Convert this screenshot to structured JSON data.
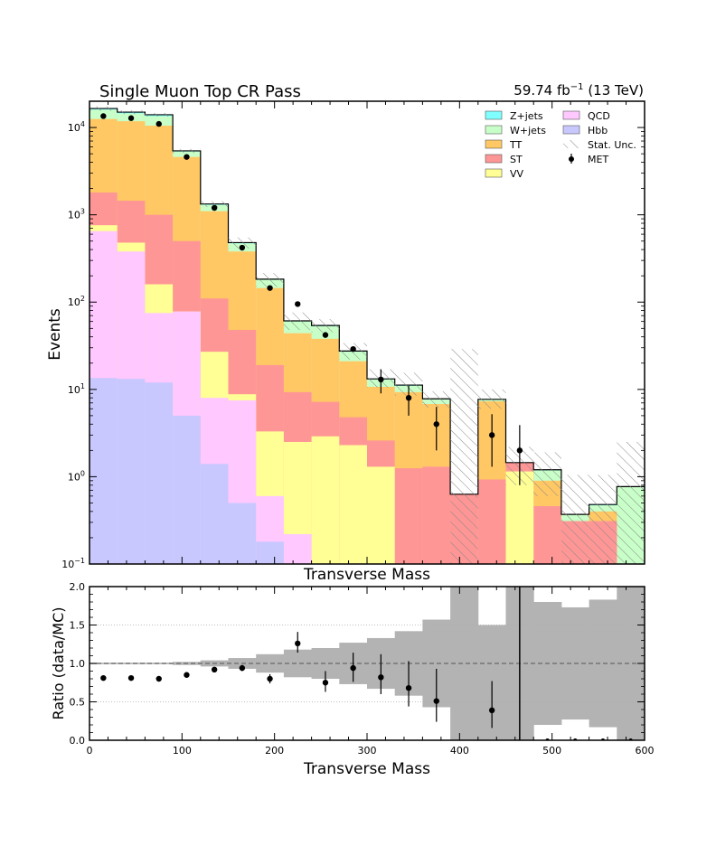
{
  "chart_data": [
    {
      "type": "stacked-histogram",
      "title": "Single Muon Top CR Pass",
      "lumi_label": "59.74 fb$^{-1}$ (13 TeV)",
      "lumi_value": "59.74 fb",
      "lumi_exp": "−1",
      "lumi_energy": "(13 TeV)",
      "xlabel": "Transverse Mass",
      "ylabel": "Events",
      "yscale": "log",
      "xlim": [
        0,
        600
      ],
      "ylim": [
        0.1,
        20000
      ],
      "bin_edges": [
        0,
        30,
        60,
        90,
        120,
        150,
        180,
        210,
        240,
        270,
        300,
        330,
        360,
        390,
        420,
        450,
        480,
        510,
        540,
        570,
        600
      ],
      "stack_order": [
        "Hbb",
        "QCD",
        "VV",
        "ST",
        "TT",
        "W+jets",
        "Z+jets"
      ],
      "stack_cumulative": {
        "Hbb": [
          13.5,
          13.2,
          12.0,
          5.0,
          1.4,
          0.5,
          0.18,
          0.1,
          0.1,
          0.1,
          0.1,
          0.1,
          0.1,
          0.1,
          0.1,
          0.1,
          0.1,
          0.1,
          0.1,
          0.1
        ],
        "QCD": [
          650,
          380,
          75,
          78,
          8.0,
          7.5,
          0.6,
          0.22,
          0.1,
          0.1,
          0.1,
          0.1,
          0.1,
          0.1,
          0.1,
          0.1,
          0.1,
          0.1,
          0.1,
          0.1
        ],
        "VV": [
          760,
          480,
          160,
          78,
          27,
          8.8,
          3.3,
          2.5,
          2.9,
          2.3,
          1.3,
          0.1,
          0.1,
          0.1,
          0.1,
          1.15,
          0.1,
          0.1,
          0.1,
          0.1
        ],
        "ST": [
          1800,
          1450,
          1000,
          500,
          110,
          48,
          19,
          9.3,
          7.2,
          4.8,
          2.6,
          1.25,
          1.3,
          0.63,
          0.93,
          1.45,
          0.46,
          0.31,
          0.31,
          0.1
        ],
        "TT": [
          12500,
          11800,
          10500,
          4600,
          1100,
          380,
          145,
          44,
          38,
          21,
          10.7,
          9.3,
          6.8,
          0.63,
          7.3,
          1.45,
          0.9,
          0.31,
          0.4,
          0.1
        ],
        "W+jets": [
          16000,
          14500,
          13500,
          5300,
          1300,
          470,
          180,
          60,
          53,
          27,
          13,
          11,
          7.7,
          0.63,
          7.6,
          1.45,
          1.18,
          0.37,
          0.47,
          0.76
        ],
        "Z+jets": [
          16500,
          15000,
          14000,
          5400,
          1330,
          480,
          183,
          61,
          54,
          27.5,
          13.2,
          11.2,
          7.8,
          0.63,
          7.7,
          1.45,
          1.2,
          0.37,
          0.48,
          0.77
        ]
      },
      "stat_unc_band": {
        "low": [
          15500,
          14200,
          13300,
          5100,
          1230,
          410,
          150,
          48,
          45,
          22,
          10.5,
          8.5,
          6.2,
          0.1,
          6.0,
          0.8,
          0.6,
          0.1,
          0.1,
          0.1
        ],
        "high": [
          17500,
          15800,
          14700,
          5700,
          1430,
          550,
          215,
          76,
          64,
          34,
          17,
          15.5,
          9.5,
          29,
          10,
          2.2,
          1.9,
          1.05,
          1.05,
          2.5
        ]
      },
      "data": {
        "name": "MET",
        "x": [
          15,
          45,
          75,
          105,
          135,
          165,
          195,
          225,
          255,
          285,
          315,
          345,
          375,
          435,
          465
        ],
        "y": [
          13500,
          12800,
          11000,
          4600,
          1200,
          420,
          145,
          95,
          42,
          29,
          13,
          8,
          4,
          3,
          2
        ],
        "err_low": [
          0,
          0,
          0,
          0,
          0,
          0,
          0,
          0,
          0,
          0,
          4,
          3,
          2,
          1.7,
          1.2
        ],
        "err_high": [
          0,
          0,
          0,
          0,
          0,
          0,
          0,
          0,
          0,
          0,
          4,
          3,
          2.3,
          2.2,
          1.9
        ]
      },
      "legend_entries": [
        {
          "label": "Z+jets",
          "color": "#7fffff",
          "kind": "patch"
        },
        {
          "label": "QCD",
          "color": "#ffc8ff",
          "kind": "patch"
        },
        {
          "label": "W+jets",
          "color": "#c8ffc8",
          "kind": "patch"
        },
        {
          "label": "Hbb",
          "color": "#c8c8ff",
          "kind": "patch"
        },
        {
          "label": "TT",
          "color": "#ffc864",
          "kind": "patch"
        },
        {
          "label": "Stat. Unc.",
          "color": "#888888",
          "kind": "hatch"
        },
        {
          "label": "ST",
          "color": "#ff9696",
          "kind": "patch"
        },
        {
          "label": "MET",
          "color": "#000000",
          "kind": "marker"
        },
        {
          "label": "VV",
          "color": "#ffff96",
          "kind": "patch"
        }
      ],
      "legend_position": "top-right",
      "yticks": [
        {
          "base": "10",
          "exp": "−1"
        },
        {
          "base": "10",
          "exp": "0"
        },
        {
          "base": "10",
          "exp": "1"
        },
        {
          "base": "10",
          "exp": "2"
        },
        {
          "base": "10",
          "exp": "3"
        },
        {
          "base": "10",
          "exp": "4"
        }
      ]
    },
    {
      "type": "ratio",
      "xlabel": "Transverse Mass",
      "ylabel": "Ratio (data/MC)",
      "xlim": [
        0,
        600
      ],
      "ylim": [
        0,
        2
      ],
      "xticks": [
        "0",
        "100",
        "200",
        "300",
        "400",
        "500",
        "600"
      ],
      "yticks": [
        "0.0",
        "0.5",
        "1.0",
        "1.5",
        "2.0"
      ],
      "gridlines": [
        0.5,
        1.0,
        1.5
      ],
      "reference_line": 1.0,
      "ratio_points": {
        "x": [
          15,
          45,
          75,
          105,
          135,
          165,
          195,
          225,
          255,
          285,
          315,
          345,
          375,
          435,
          465,
          495,
          525,
          555,
          585
        ],
        "y": [
          0.81,
          0.81,
          0.8,
          0.85,
          0.92,
          0.94,
          0.8,
          1.26,
          0.75,
          0.94,
          0.82,
          0.68,
          0.51,
          0.39,
          1.0,
          0,
          0,
          0,
          0
        ],
        "err_low": [
          0.02,
          0.02,
          0.02,
          0.02,
          0.03,
          0.04,
          0.06,
          0.12,
          0.12,
          0.18,
          0.22,
          0.24,
          0.27,
          0.23,
          1.0,
          0,
          0,
          0,
          0
        ],
        "err_high": [
          0.02,
          0.02,
          0.02,
          0.02,
          0.03,
          0.04,
          0.06,
          0.15,
          0.15,
          0.2,
          0.3,
          0.35,
          0.42,
          0.38,
          1.0,
          0,
          0,
          0,
          0
        ]
      },
      "stat_unc_band": {
        "low": [
          0.99,
          0.99,
          0.99,
          0.98,
          0.96,
          0.93,
          0.88,
          0.82,
          0.8,
          0.73,
          0.67,
          0.58,
          0.43,
          0.0,
          0.0,
          0.0,
          0.2,
          0.27,
          0.17,
          0.0
        ],
        "high": [
          1.01,
          1.01,
          1.01,
          1.02,
          1.04,
          1.07,
          1.12,
          1.18,
          1.2,
          1.27,
          1.33,
          1.42,
          1.57,
          2.0,
          1.5,
          2.0,
          1.8,
          1.73,
          1.83,
          2.0
        ]
      }
    }
  ],
  "colors": {
    "Z+jets": "#7fffff",
    "W+jets": "#c8ffc8",
    "TT": "#ffc864",
    "ST": "#ff9696",
    "VV": "#ffff96",
    "QCD": "#ffc8ff",
    "Hbb": "#c8c8ff",
    "ratio_band": "#b3b3b3"
  }
}
